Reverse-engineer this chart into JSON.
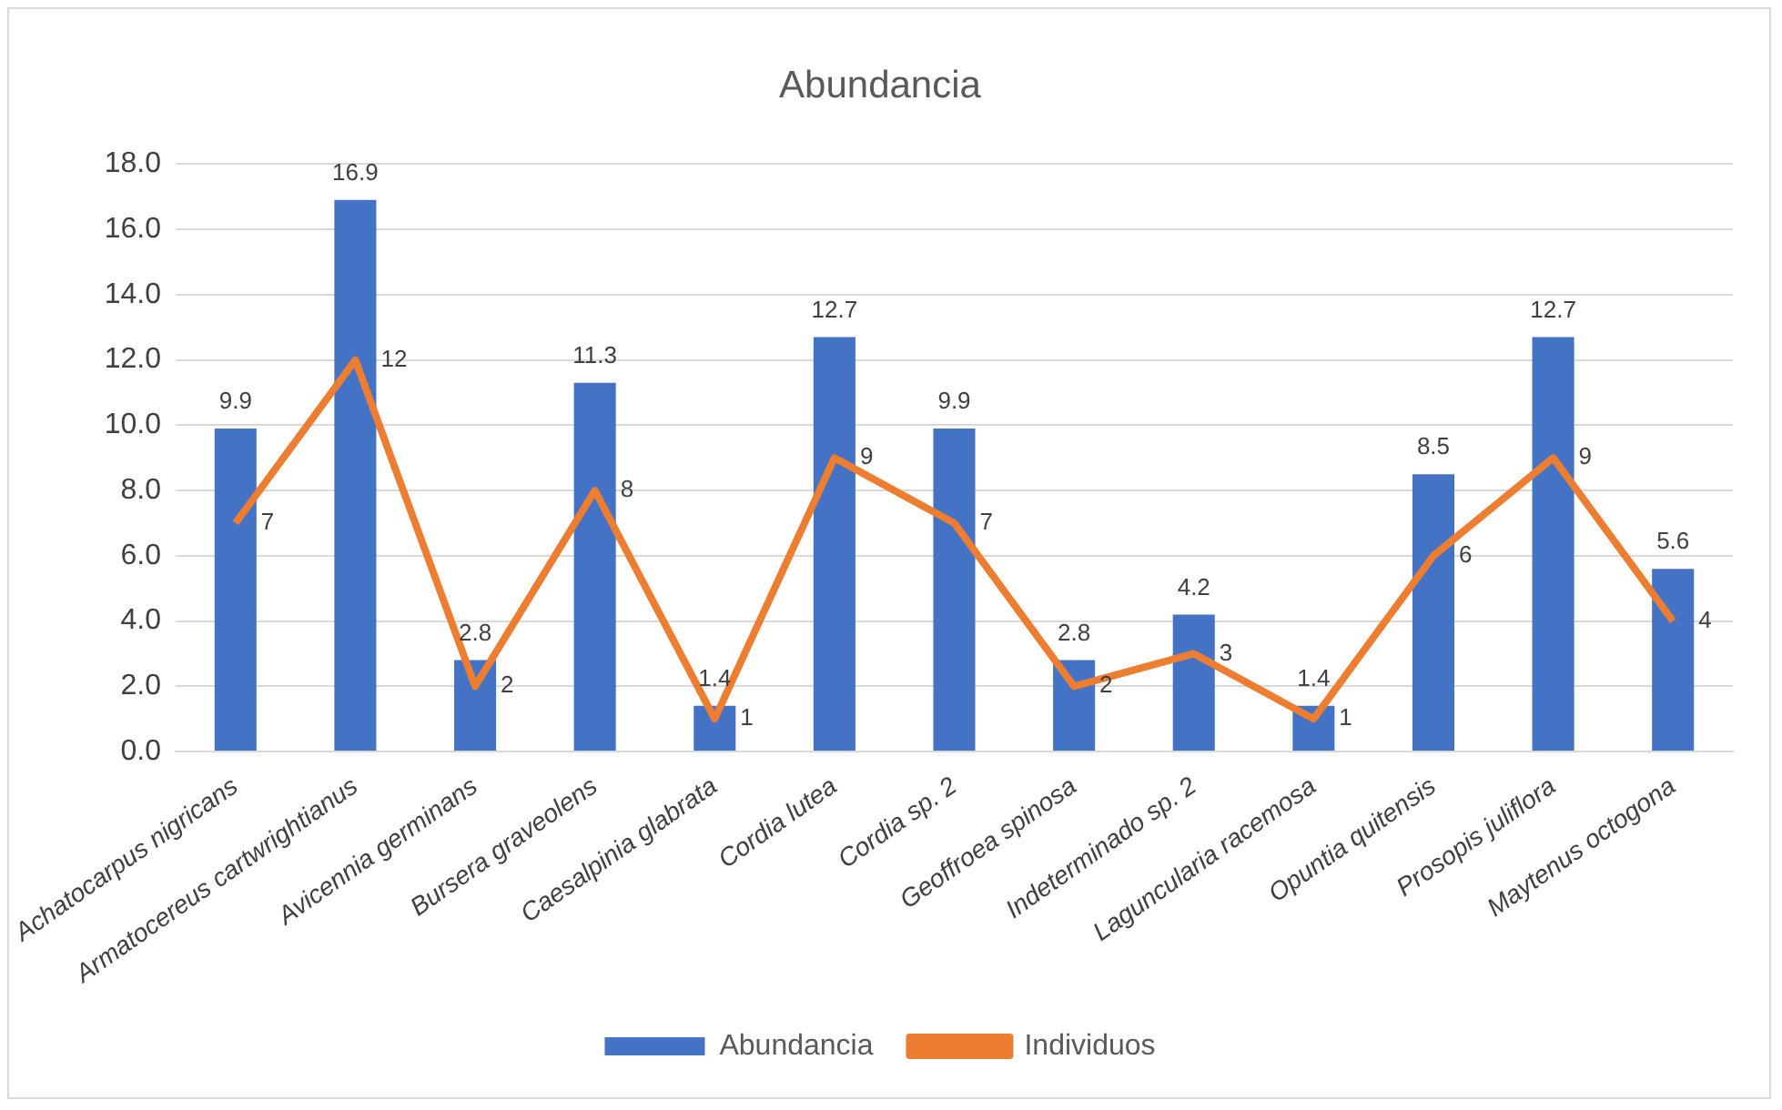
{
  "chart_data": {
    "type": "bar",
    "title": "Abundancia",
    "categories": [
      "Achatocarpus nigricans",
      "Armatocereus cartwrightianus",
      "Avicennia germinans",
      "Bursera graveolens",
      "Caesalpinia glabrata",
      "Cordia lutea",
      "Cordia sp. 2",
      "Geoffroea spinosa",
      "Indeterminado sp. 2",
      "Laguncularia racemosa",
      "Opuntia quitensis",
      "Prosopis juliflora",
      "Maytenus octogona"
    ],
    "series": [
      {
        "name": "Abundancia",
        "color": "#4472c4",
        "values": [
          9.9,
          16.9,
          2.8,
          11.3,
          1.4,
          12.7,
          9.9,
          2.8,
          4.2,
          1.4,
          8.5,
          12.7,
          5.6
        ]
      },
      {
        "name": "Individuos",
        "type": "line",
        "color": "#ed7d31",
        "values": [
          7,
          12,
          2,
          8,
          1,
          9,
          7,
          2,
          3,
          1,
          6,
          9,
          4
        ]
      }
    ],
    "ylim": [
      0,
      18
    ],
    "yticks": [
      {
        "value": 0,
        "label": "0.0"
      },
      {
        "value": 2,
        "label": "2.0"
      },
      {
        "value": 4,
        "label": "4.0"
      },
      {
        "value": 6,
        "label": "6.0"
      },
      {
        "value": 8,
        "label": "8.0"
      },
      {
        "value": 10,
        "label": "10.0"
      },
      {
        "value": 12,
        "label": "12.0"
      },
      {
        "value": 14,
        "label": "14.0"
      },
      {
        "value": 16,
        "label": "16.0"
      },
      {
        "value": 18,
        "label": "18.0"
      }
    ],
    "grid": "y",
    "legend": "bottom",
    "data_labels": true,
    "marker": "none"
  }
}
